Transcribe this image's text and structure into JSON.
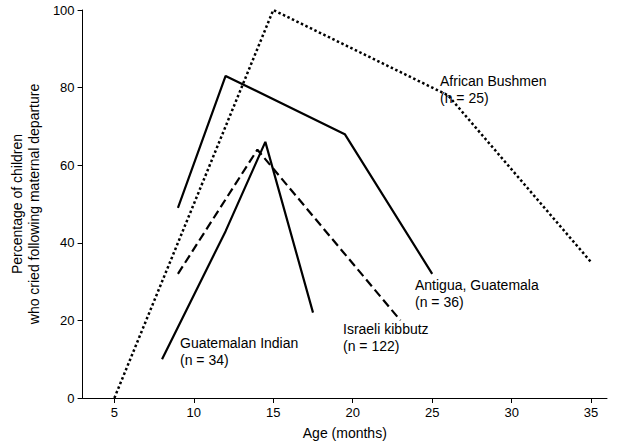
{
  "chart_data": {
    "type": "line",
    "x_label": "Age (months)",
    "y_label": "Percentage of children\nwho cried following maternal departure",
    "xlim": [
      3,
      36
    ],
    "xticks": [
      5,
      10,
      15,
      20,
      25,
      30,
      35
    ],
    "ylim": [
      0,
      100
    ],
    "yticks": [
      0,
      20,
      40,
      60,
      80,
      100
    ],
    "grid": false,
    "series": [
      {
        "name": "African Bushmen",
        "label": "(n = 25)",
        "color": "#000000",
        "line_style": "dotted",
        "x": [
          5,
          15,
          26,
          35
        ],
        "values": [
          0,
          100,
          78,
          35
        ]
      },
      {
        "name": "Antigua, Guatemala",
        "label": "(n = 36)",
        "color": "#000000",
        "line_style": "solid",
        "x": [
          9,
          12,
          19.5,
          25
        ],
        "values": [
          49,
          83,
          68,
          32
        ]
      },
      {
        "name": "Israeli kibbutz",
        "label": "(n = 122)",
        "color": "#000000",
        "line_style": "dashed",
        "x": [
          9,
          14,
          23
        ],
        "values": [
          32,
          64,
          20
        ]
      },
      {
        "name": "Guatemalan Indian",
        "label": "(n = 34)",
        "color": "#000000",
        "line_style": "solid",
        "x": [
          8,
          12,
          14.5,
          17.5
        ],
        "values": [
          10,
          43,
          66,
          22
        ]
      }
    ]
  }
}
